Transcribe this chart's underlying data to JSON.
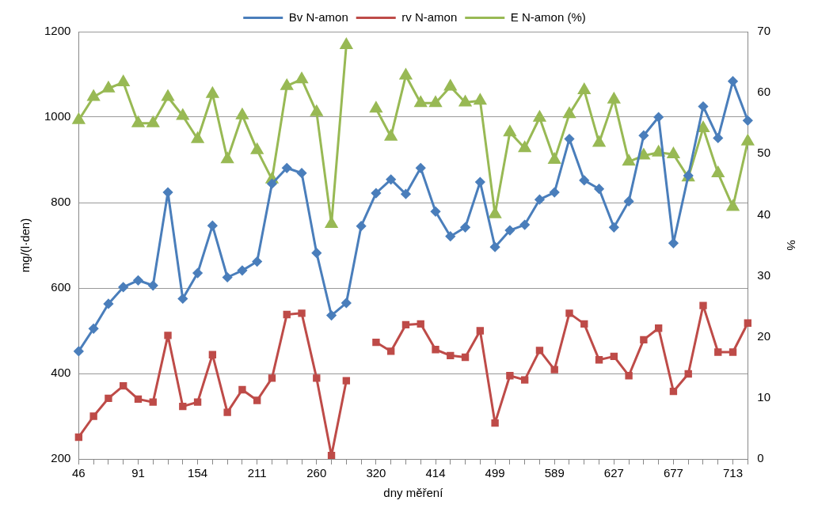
{
  "chart_data": {
    "type": "line",
    "categories": [
      "46",
      null,
      null,
      null,
      "91",
      null,
      null,
      null,
      "154",
      null,
      null,
      null,
      "211",
      null,
      null,
      null,
      "260",
      null,
      null,
      null,
      "320",
      null,
      null,
      null,
      "414",
      null,
      null,
      null,
      "499",
      null,
      null,
      null,
      "589",
      null,
      null,
      null,
      "627",
      null,
      null,
      null,
      "677",
      null,
      null,
      null,
      "713",
      null
    ],
    "series": [
      {
        "name": "Bv N-amon",
        "color": "#4a7ebb",
        "marker": "diamond",
        "values": [
          452,
          505,
          563,
          602,
          618,
          606,
          824,
          575,
          635,
          746,
          625,
          641,
          662,
          844,
          881,
          869,
          682,
          536,
          565,
          745,
          822,
          854,
          820,
          881,
          779,
          721,
          742,
          848,
          696,
          735,
          748,
          807,
          824,
          949,
          852,
          832,
          742,
          803,
          957,
          1000,
          705,
          863,
          1025,
          951,
          1084,
          992
        ]
      },
      {
        "name": "rv N-amon",
        "color": "#be4b48",
        "marker": "square",
        "values": [
          251,
          300,
          342,
          371,
          340,
          333,
          489,
          323,
          333,
          444,
          309,
          362,
          337,
          389,
          538,
          541,
          389,
          208,
          383,
          null,
          473,
          452,
          514,
          516,
          456,
          442,
          438,
          500,
          284,
          395,
          385,
          454,
          409,
          541,
          516,
          432,
          440,
          395,
          479,
          506,
          358,
          399,
          559,
          450,
          450,
          518
        ]
      },
      {
        "name": "E N-amon (%)",
        "color": "#98b954",
        "marker": "triangle",
        "axis": "y2",
        "values": [
          55.5,
          59.3,
          60.7,
          61.7,
          55.0,
          55.0,
          59.3,
          56.2,
          52.4,
          59.8,
          49.1,
          56.3,
          50.6,
          45.8,
          61.1,
          62.2,
          56.8,
          38.5,
          67.8,
          null,
          57.4,
          52.8,
          62.8,
          58.3,
          58.3,
          61.0,
          58.4,
          58.7,
          40.1,
          53.5,
          50.9,
          55.9,
          49.0,
          56.5,
          60.4,
          51.8,
          58.9,
          48.7,
          49.7,
          50.2,
          49.9,
          46.1,
          54.2,
          46.8,
          41.3,
          52.0
        ]
      }
    ],
    "xlabel": "dny měření",
    "ylabel": "mg/(l·den)",
    "y2label": "%",
    "ylim": [
      200,
      1200
    ],
    "yticks": [
      200,
      400,
      600,
      800,
      1000,
      1200
    ],
    "y2lim": [
      0,
      70
    ],
    "y2ticks": [
      0,
      10,
      20,
      30,
      40,
      50,
      60,
      70
    ],
    "grid": "y",
    "legend": "top",
    "line_style": "solid"
  }
}
